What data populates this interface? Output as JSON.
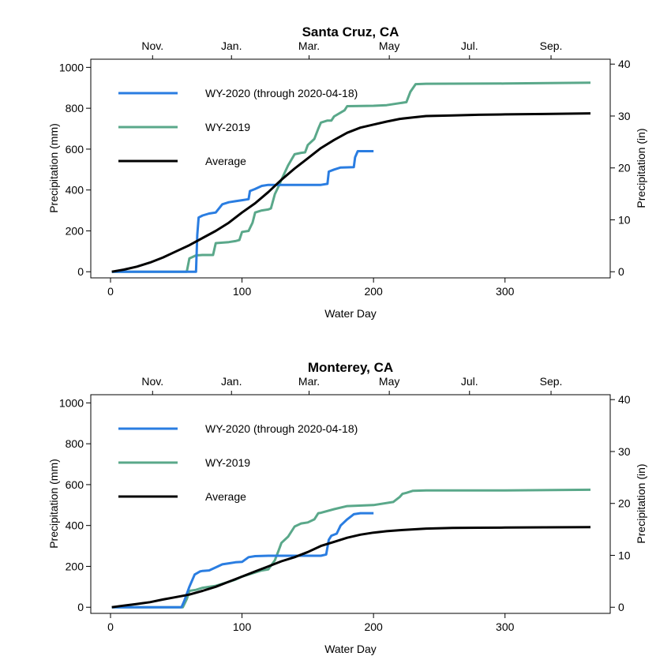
{
  "colors": {
    "wy2020": "#2a7de1",
    "wy2019": "#5aa88a",
    "average": "#000000"
  },
  "chart_data": [
    {
      "type": "line",
      "title": "Santa Cruz, CA",
      "xlabel": "Water Day",
      "ylabel": "Precipitation (mm)",
      "y2label": "Precipitation (in)",
      "xlim": [
        -15,
        380
      ],
      "ylim": [
        -30,
        1040
      ],
      "x_ticks": [
        0,
        100,
        200,
        300
      ],
      "y_ticks": [
        0,
        200,
        400,
        600,
        800,
        1000
      ],
      "y2_ticks": [
        0,
        10,
        20,
        30,
        40
      ],
      "month_ticks": [
        {
          "label": "Nov.",
          "day": 32
        },
        {
          "label": "Jan.",
          "day": 92
        },
        {
          "label": "Mar.",
          "day": 151
        },
        {
          "label": "May",
          "day": 212
        },
        {
          "label": "Jul.",
          "day": 273
        },
        {
          "label": "Sep.",
          "day": 335
        }
      ],
      "legend_position": "top-left",
      "series": [
        {
          "name": "WY-2020 (through 2020-04-18)",
          "color_key": "wy2020",
          "x": [
            1,
            65,
            66,
            67,
            70,
            75,
            80,
            85,
            90,
            95,
            100,
            105,
            106,
            110,
            115,
            120,
            125,
            130,
            150,
            160,
            165,
            166,
            170,
            175,
            185,
            186,
            188,
            190,
            195,
            200
          ],
          "y": [
            0,
            0,
            180,
            265,
            275,
            285,
            290,
            330,
            340,
            345,
            350,
            355,
            395,
            405,
            420,
            425,
            425,
            425,
            425,
            425,
            430,
            490,
            500,
            510,
            512,
            560,
            590,
            590,
            590,
            590
          ]
        },
        {
          "name": "WY-2019",
          "color_key": "wy2019",
          "x": [
            1,
            58,
            60,
            65,
            70,
            75,
            78,
            80,
            90,
            95,
            98,
            100,
            105,
            108,
            110,
            115,
            120,
            122,
            125,
            128,
            130,
            135,
            140,
            145,
            148,
            150,
            155,
            158,
            160,
            165,
            168,
            170,
            178,
            180,
            200,
            210,
            225,
            228,
            232,
            240,
            300,
            365
          ],
          "y": [
            0,
            0,
            65,
            80,
            82,
            82,
            82,
            140,
            145,
            150,
            155,
            195,
            200,
            240,
            290,
            300,
            305,
            310,
            380,
            420,
            450,
            520,
            575,
            582,
            584,
            620,
            650,
            700,
            730,
            740,
            740,
            760,
            790,
            810,
            812,
            815,
            830,
            880,
            918,
            920,
            921,
            925
          ]
        },
        {
          "name": "Average",
          "color_key": "average",
          "x": [
            1,
            10,
            20,
            30,
            40,
            50,
            60,
            70,
            80,
            90,
            100,
            110,
            120,
            130,
            140,
            150,
            160,
            170,
            180,
            190,
            200,
            210,
            220,
            230,
            240,
            260,
            280,
            300,
            330,
            365
          ],
          "y": [
            0,
            10,
            25,
            45,
            70,
            100,
            130,
            165,
            200,
            240,
            290,
            335,
            390,
            450,
            505,
            555,
            605,
            645,
            680,
            705,
            720,
            735,
            748,
            755,
            762,
            765,
            768,
            770,
            772,
            775
          ]
        }
      ]
    },
    {
      "type": "line",
      "title": "Monterey, CA",
      "xlabel": "Water Day",
      "ylabel": "Precipitation (mm)",
      "y2label": "Precipitation (in)",
      "xlim": [
        -15,
        380
      ],
      "ylim": [
        -30,
        1040
      ],
      "x_ticks": [
        0,
        100,
        200,
        300
      ],
      "y_ticks": [
        0,
        200,
        400,
        600,
        800,
        1000
      ],
      "y2_ticks": [
        0,
        10,
        20,
        30,
        40
      ],
      "month_ticks": [
        {
          "label": "Nov.",
          "day": 32
        },
        {
          "label": "Jan.",
          "day": 92
        },
        {
          "label": "Mar.",
          "day": 151
        },
        {
          "label": "May",
          "day": 212
        },
        {
          "label": "Jul.",
          "day": 273
        },
        {
          "label": "Sep.",
          "day": 335
        }
      ],
      "legend_position": "top-left",
      "series": [
        {
          "name": "WY-2020 (through 2020-04-18)",
          "color_key": "wy2020",
          "x": [
            1,
            54,
            56,
            60,
            64,
            68,
            70,
            75,
            80,
            85,
            90,
            95,
            100,
            105,
            110,
            120,
            130,
            140,
            150,
            160,
            164,
            166,
            168,
            172,
            175,
            180,
            185,
            190,
            200
          ],
          "y": [
            0,
            0,
            30,
            100,
            160,
            175,
            178,
            180,
            195,
            210,
            215,
            220,
            222,
            245,
            250,
            252,
            252,
            252,
            252,
            252,
            258,
            330,
            350,
            360,
            400,
            430,
            455,
            460,
            460
          ]
        },
        {
          "name": "WY-2019",
          "color_key": "wy2019",
          "x": [
            1,
            55,
            58,
            60,
            65,
            70,
            75,
            80,
            85,
            90,
            95,
            100,
            105,
            110,
            115,
            120,
            125,
            128,
            130,
            135,
            140,
            145,
            150,
            155,
            158,
            160,
            170,
            180,
            200,
            215,
            220,
            222,
            225,
            230,
            240,
            300,
            365
          ],
          "y": [
            0,
            0,
            40,
            80,
            85,
            95,
            100,
            105,
            115,
            125,
            135,
            150,
            160,
            170,
            180,
            185,
            230,
            280,
            315,
            345,
            395,
            410,
            415,
            430,
            460,
            462,
            480,
            495,
            500,
            515,
            540,
            555,
            560,
            570,
            572,
            572,
            575
          ]
        },
        {
          "name": "Average",
          "color_key": "average",
          "x": [
            1,
            10,
            20,
            30,
            40,
            50,
            60,
            70,
            80,
            90,
            100,
            110,
            120,
            130,
            140,
            150,
            160,
            170,
            180,
            190,
            200,
            210,
            220,
            240,
            260,
            280,
            300,
            330,
            365
          ],
          "y": [
            0,
            8,
            16,
            25,
            38,
            50,
            62,
            80,
            100,
            125,
            150,
            175,
            200,
            225,
            245,
            270,
            300,
            320,
            340,
            355,
            365,
            372,
            377,
            385,
            388,
            389,
            390,
            391,
            392
          ]
        }
      ]
    }
  ]
}
